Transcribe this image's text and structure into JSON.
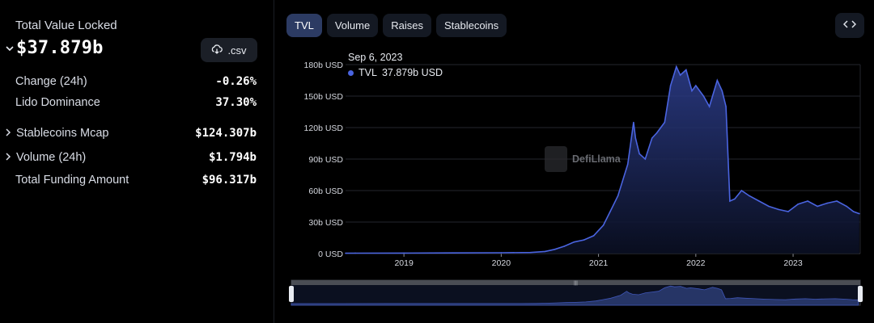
{
  "summary": {
    "title": "Total Value Locked",
    "value": "$37.879b",
    "csv_label": ".csv",
    "rows": [
      {
        "label": "Change (24h)",
        "value": "-0.26%",
        "expandable": false
      },
      {
        "label": "Lido Dominance",
        "value": "37.30%",
        "expandable": false
      },
      {
        "label": "Stablecoins Mcap",
        "value": "$124.307b",
        "expandable": true
      },
      {
        "label": "Volume (24h)",
        "value": "$1.794b",
        "expandable": true
      },
      {
        "label": "Total Funding Amount",
        "value": "$96.317b",
        "expandable": false
      }
    ]
  },
  "tabs": [
    {
      "label": "TVL",
      "active": true
    },
    {
      "label": "Volume",
      "active": false
    },
    {
      "label": "Raises",
      "active": false
    },
    {
      "label": "Stablecoins",
      "active": false
    }
  ],
  "icons": {
    "embed": "code-brackets-icon",
    "csv": "cloud-download-icon",
    "expand": "chevron-right-icon",
    "collapse": "chevron-down-icon"
  },
  "tooltip": {
    "date": "Sep 6, 2023",
    "series": "TVL",
    "value": "37.879b USD"
  },
  "watermark": "DefiLlama",
  "colors": {
    "line": "#4a64e0",
    "active_tab": "#2c3b63",
    "tab": "#141923",
    "background": "#000000"
  },
  "chart_data": {
    "type": "area",
    "series": [
      {
        "name": "TVL"
      }
    ],
    "y_ticks": [
      "0 USD",
      "30b USD",
      "60b USD",
      "90b USD",
      "120b USD",
      "150b USD",
      "180b USD"
    ],
    "x_ticks": [
      "2019",
      "2020",
      "2021",
      "2022",
      "2023"
    ],
    "ylim": [
      0,
      180
    ],
    "unit": "b USD",
    "x": [
      2018.0,
      2018.5,
      2019.0,
      2019.5,
      2020.0,
      2020.3,
      2020.45,
      2020.55,
      2020.65,
      2020.75,
      2020.85,
      2020.95,
      2021.05,
      2021.12,
      2021.2,
      2021.3,
      2021.36,
      2021.38,
      2021.42,
      2021.48,
      2021.55,
      2021.6,
      2021.68,
      2021.74,
      2021.8,
      2021.84,
      2021.9,
      2021.96,
      2022.0,
      2022.08,
      2022.14,
      2022.22,
      2022.27,
      2022.31,
      2022.35,
      2022.4,
      2022.47,
      2022.55,
      2022.65,
      2022.75,
      2022.85,
      2022.95,
      2023.05,
      2023.15,
      2023.25,
      2023.35,
      2023.45,
      2023.55,
      2023.62,
      2023.68
    ],
    "values": [
      0.3,
      0.4,
      0.5,
      0.6,
      0.8,
      1.0,
      2.0,
      4.0,
      7.0,
      11.0,
      13.0,
      17.0,
      27.0,
      40.0,
      55.0,
      85.0,
      125.0,
      110.0,
      95.0,
      90.0,
      110.0,
      115.0,
      125.0,
      160.0,
      178.0,
      170.0,
      175.0,
      155.0,
      160.0,
      150.0,
      140.0,
      165.0,
      155.0,
      140.0,
      50.0,
      52.0,
      60.0,
      55.0,
      50.0,
      45.0,
      42.0,
      40.0,
      47.0,
      50.0,
      45.0,
      48.0,
      50.0,
      45.0,
      40.0,
      38.0
    ]
  }
}
